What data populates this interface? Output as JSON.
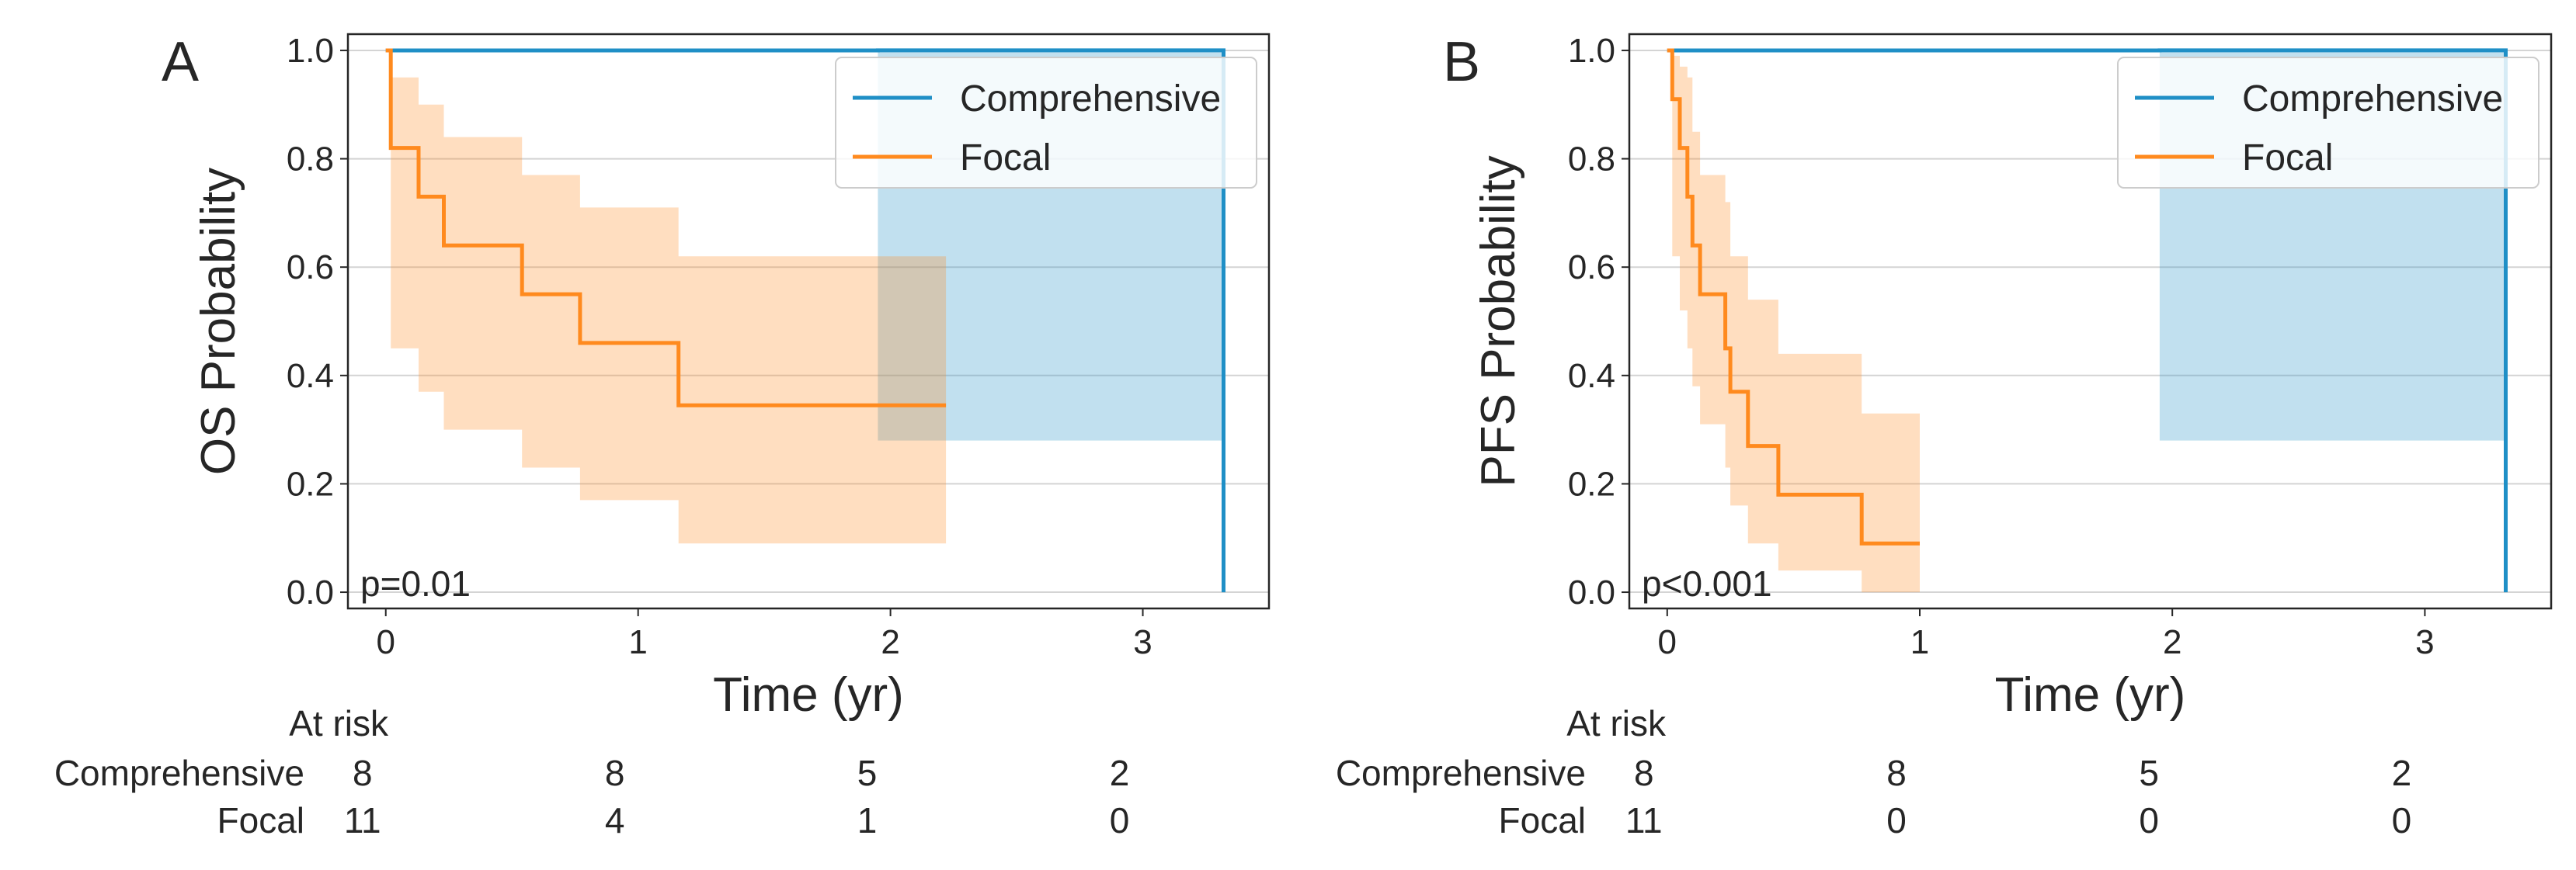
{
  "chart_data": [
    {
      "type": "line",
      "panel_label": "A",
      "xlabel": "Time (yr)",
      "ylabel": "OS Probability",
      "xlim": [
        -0.15,
        3.5
      ],
      "ylim": [
        -0.03,
        1.03
      ],
      "xticks": [
        0,
        1,
        2,
        3
      ],
      "yticks": [
        0.0,
        0.2,
        0.4,
        0.6,
        0.8,
        1.0
      ],
      "grid": true,
      "legend_position": "top-right",
      "annotation": "p=0.01",
      "series": [
        {
          "name": "Comprehensive",
          "color": "#1f8fc6",
          "times": [
            0,
            1.95,
            3.32
          ],
          "survival": [
            1.0,
            1.0,
            0.0
          ],
          "ci_lower": [
            1.0,
            0.28,
            0.28
          ],
          "ci_upper": [
            1.0,
            1.0,
            1.0
          ],
          "end_time": 3.32
        },
        {
          "name": "Focal",
          "color": "#ff8a1e",
          "times": [
            0,
            0.02,
            0.13,
            0.23,
            0.54,
            0.77,
            1.16
          ],
          "survival": [
            1.0,
            0.82,
            0.73,
            0.64,
            0.55,
            0.46,
            0.345
          ],
          "ci_lower": [
            1.0,
            0.45,
            0.37,
            0.3,
            0.23,
            0.17,
            0.09
          ],
          "ci_upper": [
            1.0,
            0.95,
            0.9,
            0.84,
            0.77,
            0.71,
            0.62
          ],
          "end_time": 2.22
        }
      ],
      "at_risk": {
        "title": "At risk",
        "times": [
          0,
          1,
          2,
          3
        ],
        "rows": [
          {
            "label": "Comprehensive",
            "counts": [
              "8",
              "8",
              "5",
              "2"
            ]
          },
          {
            "label": "Focal",
            "counts": [
              "11",
              "4",
              "1",
              "0"
            ]
          }
        ]
      }
    },
    {
      "type": "line",
      "panel_label": "B",
      "xlabel": "Time (yr)",
      "ylabel": "PFS Probability",
      "xlim": [
        -0.15,
        3.5
      ],
      "ylim": [
        -0.03,
        1.03
      ],
      "xticks": [
        0,
        1,
        2,
        3
      ],
      "yticks": [
        0.0,
        0.2,
        0.4,
        0.6,
        0.8,
        1.0
      ],
      "grid": true,
      "legend_position": "top-right",
      "annotation": "p<0.001",
      "series": [
        {
          "name": "Comprehensive",
          "color": "#1f8fc6",
          "times": [
            0,
            1.95,
            3.32
          ],
          "survival": [
            1.0,
            1.0,
            0.0
          ],
          "ci_lower": [
            1.0,
            0.28,
            0.28
          ],
          "ci_upper": [
            1.0,
            1.0,
            1.0
          ],
          "end_time": 3.32
        },
        {
          "name": "Focal",
          "color": "#ff8a1e",
          "times": [
            0,
            0.02,
            0.05,
            0.08,
            0.1,
            0.13,
            0.23,
            0.25,
            0.32,
            0.44,
            0.77
          ],
          "survival": [
            1.0,
            0.91,
            0.82,
            0.73,
            0.64,
            0.55,
            0.45,
            0.37,
            0.27,
            0.18,
            0.09
          ],
          "ci_lower": [
            1.0,
            0.62,
            0.52,
            0.45,
            0.38,
            0.31,
            0.23,
            0.16,
            0.09,
            0.04,
            0.0
          ],
          "ci_upper": [
            1.0,
            0.99,
            0.97,
            0.95,
            0.85,
            0.77,
            0.72,
            0.62,
            0.54,
            0.44,
            0.33
          ],
          "end_time": 1.0
        }
      ],
      "at_risk": {
        "title": "At risk",
        "times": [
          0,
          1,
          2,
          3
        ],
        "rows": [
          {
            "label": "Comprehensive",
            "counts": [
              "8",
              "8",
              "5",
              "2"
            ]
          },
          {
            "label": "Focal",
            "counts": [
              "11",
              "0",
              "0",
              "0"
            ]
          }
        ]
      }
    }
  ]
}
